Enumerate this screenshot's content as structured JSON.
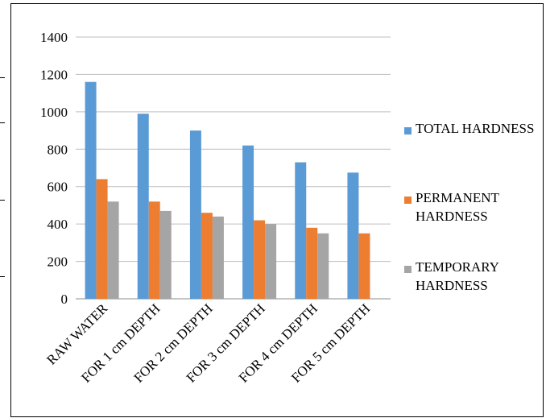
{
  "chart_data": {
    "type": "bar",
    "categories": [
      "RAW WATER",
      "FOR 1 cm DEPTH",
      "FOR 2 cm DEPTH",
      "FOR 3 cm DEPTH",
      "FOR 4 cm DEPTH",
      "FOR 5 cm DEPTH"
    ],
    "series": [
      {
        "name": "TOTAL HARDNESS",
        "values": [
          1160,
          990,
          900,
          820,
          730,
          675
        ],
        "color": "#5b9bd5"
      },
      {
        "name": "PERMANENT HARDNESS",
        "values": [
          640,
          520,
          460,
          420,
          380,
          350
        ],
        "color": "#ed7d31"
      },
      {
        "name": "TEMPORARY HARDNESS",
        "values": [
          520,
          470,
          440,
          400,
          350,
          0
        ],
        "color": "#a5a5a5"
      }
    ],
    "yticks": [
      "0",
      "200",
      "400",
      "600",
      "800",
      "1000",
      "1200",
      "1400"
    ],
    "ylim": [
      0,
      1400
    ],
    "grid": true,
    "legend_position": "right",
    "title": "",
    "xlabel": "",
    "ylabel": ""
  }
}
